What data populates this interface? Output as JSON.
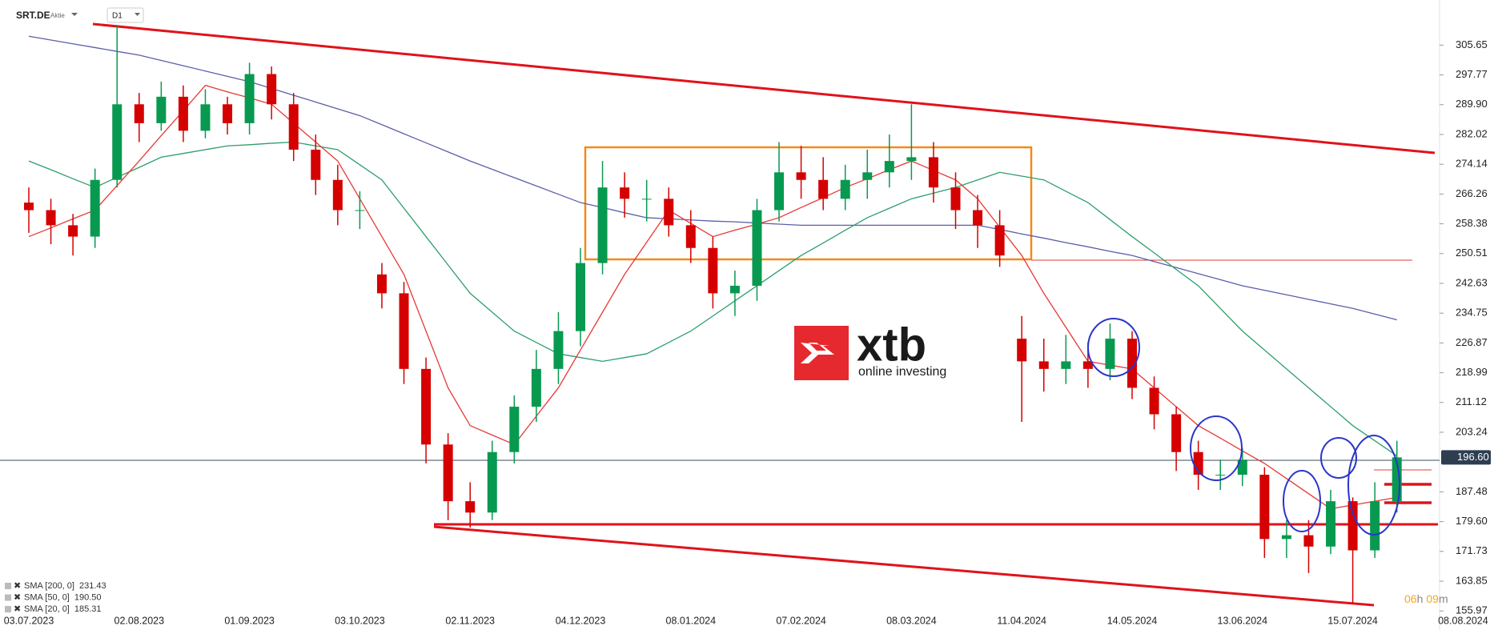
{
  "header": {
    "symbol": "SRT.DE",
    "kind": "Aktie",
    "interval": "D1"
  },
  "logo": {
    "brand": "xtb",
    "tagline": "online investing"
  },
  "timer": [
    "06",
    "h",
    "09",
    "m"
  ],
  "chart_data": {
    "type": "candlestick",
    "categories": [
      "03.07.2023",
      null,
      null,
      null,
      null,
      "02.08.2023",
      null,
      null,
      null,
      null,
      "01.09.2023",
      null,
      null,
      null,
      null,
      "03.10.2023",
      null,
      null,
      null,
      null,
      "02.11.2023",
      null,
      null,
      null,
      null,
      "04.12.2023",
      null,
      null,
      null,
      null,
      "08.01.2024",
      null,
      null,
      null,
      null,
      "07.02.2024",
      null,
      null,
      null,
      null,
      "08.03.2024",
      null,
      null,
      null,
      null,
      "11.04.2024",
      null,
      null,
      null,
      null,
      "14.05.2024",
      null,
      null,
      null,
      null,
      "13.06.2024",
      null,
      null,
      null,
      null,
      "15.07.2024",
      null,
      null,
      null,
      null,
      "08.08.2024"
    ],
    "open": [
      264,
      262,
      258,
      255,
      270,
      290,
      285,
      292,
      283,
      290,
      285,
      298,
      290,
      278,
      270,
      262,
      245,
      240,
      220,
      200,
      185,
      182,
      198,
      210,
      220,
      230,
      248,
      268,
      265,
      265,
      258,
      252,
      240,
      242,
      262,
      272,
      270,
      265,
      270,
      272,
      275,
      276,
      268,
      262,
      258,
      228,
      222,
      220,
      222,
      220,
      228,
      215,
      208,
      198,
      192,
      192,
      192,
      175,
      176,
      173,
      185,
      172,
      185,
      null,
      null,
      null
    ],
    "high": [
      268,
      265,
      261,
      273,
      311,
      293,
      296,
      295,
      294,
      292,
      301,
      300,
      293,
      282,
      274,
      267,
      248,
      243,
      223,
      203,
      190,
      201,
      213,
      225,
      235,
      252,
      275,
      272,
      270,
      268,
      262,
      255,
      246,
      265,
      280,
      279,
      276,
      274,
      278,
      282,
      290,
      280,
      272,
      266,
      262,
      234,
      228,
      229,
      227,
      232,
      230,
      218,
      210,
      201,
      196,
      199,
      194,
      180,
      180,
      188,
      186,
      190,
      201,
      null,
      null,
      null
    ],
    "low": [
      256,
      253,
      250,
      252,
      268,
      280,
      283,
      280,
      281,
      282,
      282,
      286,
      275,
      266,
      258,
      257,
      236,
      216,
      195,
      180,
      178,
      180,
      195,
      206,
      216,
      226,
      245,
      260,
      259,
      255,
      248,
      236,
      234,
      238,
      259,
      265,
      262,
      262,
      265,
      268,
      270,
      264,
      257,
      252,
      247,
      206,
      214,
      216,
      215,
      217,
      212,
      204,
      193,
      188,
      188,
      189,
      170,
      170,
      166,
      171,
      158,
      170,
      182,
      null,
      null,
      null
    ],
    "close": [
      262,
      258,
      255,
      270,
      290,
      285,
      292,
      283,
      290,
      285,
      298,
      290,
      278,
      270,
      262,
      262,
      240,
      220,
      200,
      185,
      182,
      198,
      210,
      220,
      230,
      248,
      268,
      265,
      265,
      258,
      252,
      240,
      242,
      262,
      272,
      270,
      265,
      270,
      272,
      275,
      276,
      268,
      262,
      258,
      250,
      222,
      220,
      222,
      220,
      228,
      215,
      208,
      198,
      192,
      192,
      196,
      175,
      176,
      173,
      185,
      172,
      185,
      196.6,
      null,
      null,
      null
    ],
    "up_color": "#089950",
    "down_color": "#d50000",
    "indicators": [
      {
        "name": "SMA [200, 0]",
        "value": 231.43,
        "color": "#5c5fa8",
        "values": [
          308,
          307,
          306,
          305,
          304,
          303,
          301.6,
          300.2,
          298.8,
          297.4,
          296,
          294.2,
          292.4,
          290.6,
          288.8,
          287,
          284.6,
          282.2,
          279.8,
          277.4,
          275,
          272.8,
          270.6,
          268.4,
          266.2,
          264,
          262.7,
          261.3,
          260,
          259.7,
          259.4,
          259.1,
          258.9,
          258.6,
          258.3,
          258,
          258,
          258,
          258,
          258,
          258,
          258,
          258,
          258,
          256.9,
          255.7,
          254.6,
          253.4,
          252.3,
          251.1,
          250,
          248.4,
          246.8,
          245.2,
          243.6,
          242,
          240.8,
          239.6,
          238.4,
          237.2,
          236,
          234.5,
          233,
          null,
          null,
          null
        ]
      },
      {
        "name": "SMA [50, 0]",
        "value": 190.5,
        "value_label": "190.50",
        "color": "#2e9e6b",
        "values": [
          275,
          272.7,
          270.3,
          268,
          270.7,
          273.3,
          276,
          277,
          278,
          279,
          279.3,
          279.7,
          280,
          279,
          278,
          274,
          270,
          262.5,
          255,
          247.5,
          240,
          235,
          230,
          227,
          224,
          223,
          222,
          223,
          224,
          227,
          230,
          234,
          238,
          242,
          246,
          250,
          253.3,
          256.7,
          260,
          262.5,
          265,
          266.5,
          268,
          270,
          272,
          271,
          270,
          267,
          264,
          259.5,
          255,
          250.7,
          246.3,
          242,
          236,
          230,
          225,
          220,
          215,
          210,
          205,
          201,
          197,
          null,
          null,
          null
        ]
      },
      {
        "name": "SMA [20, 0]",
        "value": 185.31,
        "color": "#e53935",
        "values": [
          255,
          257.3,
          259.7,
          262,
          268.5,
          275,
          281.7,
          288.3,
          295,
          293.3,
          291.7,
          290,
          285,
          280,
          275,
          265,
          255,
          245,
          230,
          215,
          205,
          202.5,
          200,
          207.5,
          215,
          225,
          235,
          245,
          253.5,
          262,
          258.5,
          255,
          256.7,
          258.3,
          260,
          262.7,
          265.3,
          268,
          270.3,
          272.7,
          275,
          272.5,
          270,
          265,
          257.5,
          250,
          240,
          231,
          222,
          221,
          220,
          215,
          210,
          205,
          201.7,
          198.3,
          195,
          191,
          187,
          183,
          184,
          185,
          186,
          null,
          null,
          null
        ]
      }
    ],
    "last_price": {
      "value": 196.6,
      "label": "196.60"
    },
    "ylim": [
      150.93,
      317.59
    ],
    "yticks": [
      {
        "value": 305.65,
        "label": "305.65"
      },
      {
        "value": 297.77,
        "label": "297.77"
      },
      {
        "value": 289.9,
        "label": "289.90"
      },
      {
        "value": 282.02,
        "label": "282.02"
      },
      {
        "value": 274.14,
        "label": "274.14"
      },
      {
        "value": 266.26,
        "label": "266.26"
      },
      {
        "value": 258.38,
        "label": "258.38"
      },
      {
        "value": 250.51,
        "label": "250.51"
      },
      {
        "value": 242.63,
        "label": "242.63"
      },
      {
        "value": 234.75,
        "label": "234.75"
      },
      {
        "value": 226.87,
        "label": "226.87"
      },
      {
        "value": 218.99,
        "label": "218.99"
      },
      {
        "value": 211.12,
        "label": "211.12"
      },
      {
        "value": 203.24,
        "label": "203.24"
      },
      {
        "value": 187.48,
        "label": "187.48"
      },
      {
        "value": 179.6,
        "label": "179.60"
      },
      {
        "value": 171.73,
        "label": "171.73"
      },
      {
        "value": 163.85,
        "label": "163.85"
      },
      {
        "value": 155.97,
        "label": "155.97"
      }
    ]
  }
}
